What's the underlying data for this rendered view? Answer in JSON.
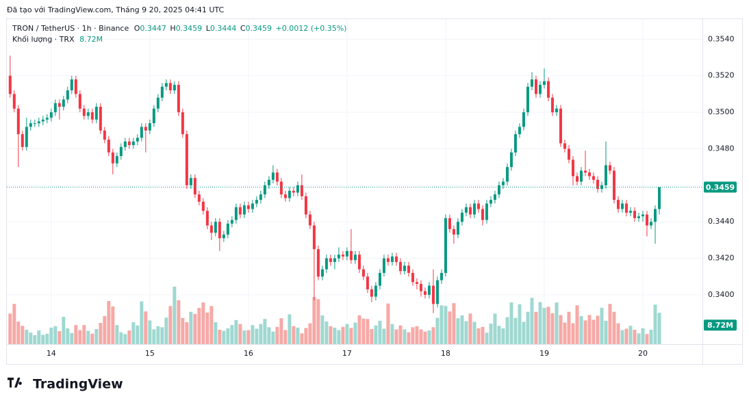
{
  "caption": "Đã tạo với TradingView.com, Tháng 9 20, 2025 04:41 UTC",
  "logo": "TradingView",
  "chart_data": {
    "type": "candlestick",
    "title": "TRON / TetherUS · 1h · Binance",
    "ohlc_labels": [
      "O",
      "H",
      "L",
      "C"
    ],
    "change": "+0.0012 (+0.35%)",
    "volume_title": "Khối lượng · TRX",
    "last_volume_label": "8.72M",
    "up_color": "#089981",
    "down_color": "#f23645",
    "volume_up_color": "#9fd8d1",
    "volume_down_color": "#f6a9a6",
    "grid": true,
    "xlim": [
      -0.8,
      168.5
    ],
    "xticks": [
      {
        "value": 10,
        "label": "14"
      },
      {
        "value": 34,
        "label": "15"
      },
      {
        "value": 58,
        "label": "16"
      },
      {
        "value": 82,
        "label": "17"
      },
      {
        "value": 106,
        "label": "18"
      },
      {
        "value": 130,
        "label": "19"
      },
      {
        "value": 154,
        "label": "20"
      }
    ],
    "ylim": [
      0.3373,
      0.3551
    ],
    "yticks": [
      {
        "value": 0.34,
        "label": "0.3400"
      },
      {
        "value": 0.342,
        "label": "0.3420"
      },
      {
        "value": 0.344,
        "label": "0.3440"
      },
      {
        "value": 0.346,
        "label": "0.3460"
      },
      {
        "value": 0.348,
        "label": "0.3480"
      },
      {
        "value": 0.35,
        "label": "0.3500"
      },
      {
        "value": 0.352,
        "label": "0.3520"
      },
      {
        "value": 0.354,
        "label": "0.3540"
      }
    ],
    "open": [
      0.352,
      0.351,
      0.3502,
      0.3488,
      0.3481,
      0.3492,
      0.3494,
      0.3494,
      0.3495,
      0.3496,
      0.3497,
      0.35,
      0.3505,
      0.3503,
      0.3507,
      0.3512,
      0.3518,
      0.351,
      0.3502,
      0.3498,
      0.35,
      0.3496,
      0.3503,
      0.349,
      0.3485,
      0.3478,
      0.3472,
      0.3476,
      0.3481,
      0.3484,
      0.3482,
      0.3484,
      0.3486,
      0.3492,
      0.349,
      0.3494,
      0.3502,
      0.3508,
      0.3514,
      0.3516,
      0.3512,
      0.3515,
      0.35,
      0.3488,
      0.346,
      0.3464,
      0.3455,
      0.3451,
      0.3446,
      0.3438,
      0.3434,
      0.344,
      0.3431,
      0.3433,
      0.3439,
      0.3441,
      0.3448,
      0.3444,
      0.3449,
      0.3447,
      0.345,
      0.3452,
      0.3455,
      0.346,
      0.3463,
      0.3467,
      0.3462,
      0.3455,
      0.3453,
      0.3457,
      0.3456,
      0.346,
      0.3454,
      0.3444,
      0.3438,
      0.3425,
      0.341,
      0.3414,
      0.342,
      0.3418,
      0.342,
      0.3422,
      0.3421,
      0.3424,
      0.3419,
      0.3422,
      0.3414,
      0.341,
      0.3403,
      0.3399,
      0.3405,
      0.3412,
      0.342,
      0.3418,
      0.3421,
      0.3418,
      0.3413,
      0.3416,
      0.3412,
      0.3407,
      0.3406,
      0.3402,
      0.34,
      0.3405,
      0.3395,
      0.3408,
      0.3412,
      0.3442,
      0.3436,
      0.3433,
      0.344,
      0.3445,
      0.3448,
      0.3444,
      0.345,
      0.3447,
      0.3441,
      0.345,
      0.3452,
      0.3455,
      0.346,
      0.3462,
      0.347,
      0.3478,
      0.3488,
      0.3492,
      0.35,
      0.3514,
      0.3518,
      0.351,
      0.3515,
      0.3517,
      0.3508,
      0.35,
      0.3502,
      0.3483,
      0.348,
      0.3474,
      0.3465,
      0.3462,
      0.3468,
      0.3467,
      0.3465,
      0.3463,
      0.3458,
      0.346,
      0.3471,
      0.3468,
      0.3452,
      0.3447,
      0.345,
      0.3445,
      0.3446,
      0.3442,
      0.3443,
      0.3444,
      0.3438,
      0.344,
      0.3447
    ],
    "high": [
      0.3531,
      0.3512,
      0.3504,
      0.349,
      0.3497,
      0.3496,
      0.3496,
      0.3497,
      0.3498,
      0.3499,
      0.3502,
      0.3507,
      0.3507,
      0.3509,
      0.3514,
      0.352,
      0.352,
      0.3512,
      0.3504,
      0.3502,
      0.3502,
      0.3505,
      0.3505,
      0.3492,
      0.3487,
      0.348,
      0.3478,
      0.3483,
      0.3486,
      0.3486,
      0.3486,
      0.3488,
      0.3494,
      0.3494,
      0.3496,
      0.3504,
      0.351,
      0.3516,
      0.3518,
      0.3518,
      0.3517,
      0.3517,
      0.3502,
      0.349,
      0.3466,
      0.3466,
      0.3457,
      0.3453,
      0.3448,
      0.344,
      0.3442,
      0.3442,
      0.3435,
      0.3441,
      0.3443,
      0.345,
      0.345,
      0.3451,
      0.3451,
      0.3452,
      0.3454,
      0.3457,
      0.3462,
      0.3465,
      0.3471,
      0.3469,
      0.3464,
      0.3457,
      0.3459,
      0.3459,
      0.3462,
      0.3466,
      0.3456,
      0.3446,
      0.344,
      0.3427,
      0.3416,
      0.3422,
      0.3422,
      0.3422,
      0.3426,
      0.3424,
      0.3426,
      0.3436,
      0.3424,
      0.3424,
      0.3416,
      0.3412,
      0.3405,
      0.3407,
      0.3414,
      0.3422,
      0.3422,
      0.3423,
      0.3423,
      0.342,
      0.3418,
      0.3418,
      0.3414,
      0.3409,
      0.3408,
      0.3404,
      0.3407,
      0.3414,
      0.341,
      0.3414,
      0.3444,
      0.3444,
      0.3438,
      0.3442,
      0.3447,
      0.345,
      0.345,
      0.3452,
      0.3452,
      0.3449,
      0.3452,
      0.3454,
      0.3457,
      0.3462,
      0.3464,
      0.3472,
      0.348,
      0.349,
      0.3494,
      0.3502,
      0.3516,
      0.3522,
      0.352,
      0.3517,
      0.3524,
      0.3519,
      0.351,
      0.3504,
      0.3504,
      0.3485,
      0.3482,
      0.3476,
      0.3467,
      0.347,
      0.3479,
      0.3469,
      0.3467,
      0.3465,
      0.3462,
      0.3484,
      0.3473,
      0.347,
      0.3454,
      0.3452,
      0.3452,
      0.3448,
      0.3448,
      0.3445,
      0.3446,
      0.3446,
      0.3442,
      0.3449,
      0.3459
    ],
    "low": [
      0.3508,
      0.35,
      0.347,
      0.3479,
      0.3479,
      0.349,
      0.3492,
      0.3492,
      0.3493,
      0.3494,
      0.3495,
      0.3498,
      0.3496,
      0.3501,
      0.3505,
      0.351,
      0.3508,
      0.35,
      0.3496,
      0.3496,
      0.3494,
      0.3494,
      0.3488,
      0.3483,
      0.3476,
      0.3466,
      0.347,
      0.3474,
      0.3479,
      0.348,
      0.348,
      0.3482,
      0.3484,
      0.3478,
      0.3488,
      0.3492,
      0.35,
      0.3506,
      0.3512,
      0.351,
      0.351,
      0.3498,
      0.3486,
      0.3458,
      0.3458,
      0.3453,
      0.3449,
      0.3444,
      0.3436,
      0.343,
      0.3432,
      0.3424,
      0.3429,
      0.3431,
      0.3437,
      0.3439,
      0.3442,
      0.3442,
      0.3445,
      0.3445,
      0.3448,
      0.345,
      0.3453,
      0.3458,
      0.3461,
      0.346,
      0.3453,
      0.3451,
      0.3451,
      0.3454,
      0.3454,
      0.3452,
      0.3442,
      0.3436,
      0.3397,
      0.3408,
      0.3408,
      0.3412,
      0.3416,
      0.3414,
      0.3418,
      0.3419,
      0.3419,
      0.3417,
      0.3417,
      0.3412,
      0.3408,
      0.3401,
      0.3396,
      0.3397,
      0.3403,
      0.341,
      0.3416,
      0.3416,
      0.3416,
      0.3411,
      0.3411,
      0.341,
      0.3405,
      0.3403,
      0.3399,
      0.3398,
      0.3398,
      0.339,
      0.3393,
      0.3406,
      0.341,
      0.3434,
      0.3428,
      0.3431,
      0.3438,
      0.3443,
      0.3442,
      0.3442,
      0.3445,
      0.3438,
      0.3439,
      0.3448,
      0.345,
      0.3453,
      0.3458,
      0.346,
      0.3468,
      0.3476,
      0.3486,
      0.349,
      0.3498,
      0.3512,
      0.3508,
      0.3508,
      0.3513,
      0.3506,
      0.3498,
      0.3498,
      0.3481,
      0.3478,
      0.3472,
      0.346,
      0.346,
      0.346,
      0.3465,
      0.3463,
      0.3461,
      0.3456,
      0.3456,
      0.3458,
      0.3466,
      0.345,
      0.3445,
      0.3445,
      0.3443,
      0.3443,
      0.344,
      0.344,
      0.344,
      0.3432,
      0.3436,
      0.3428,
      0.3444
    ],
    "close": [
      0.351,
      0.3502,
      0.3488,
      0.3481,
      0.3492,
      0.3494,
      0.3494,
      0.3495,
      0.3496,
      0.3497,
      0.35,
      0.3505,
      0.3503,
      0.3507,
      0.3512,
      0.3518,
      0.351,
      0.3502,
      0.3498,
      0.35,
      0.3496,
      0.3503,
      0.349,
      0.3485,
      0.3478,
      0.3472,
      0.3476,
      0.3481,
      0.3484,
      0.3482,
      0.3484,
      0.3486,
      0.3492,
      0.349,
      0.3494,
      0.3502,
      0.3508,
      0.3514,
      0.3516,
      0.3512,
      0.3515,
      0.35,
      0.3488,
      0.346,
      0.3464,
      0.3455,
      0.3451,
      0.3446,
      0.3438,
      0.3434,
      0.344,
      0.3431,
      0.3433,
      0.3439,
      0.3441,
      0.3448,
      0.3444,
      0.3449,
      0.3447,
      0.345,
      0.3452,
      0.3455,
      0.346,
      0.3463,
      0.3467,
      0.3462,
      0.3455,
      0.3453,
      0.3457,
      0.3456,
      0.346,
      0.3454,
      0.3444,
      0.3438,
      0.3425,
      0.341,
      0.3414,
      0.342,
      0.3418,
      0.342,
      0.3422,
      0.3421,
      0.3424,
      0.3419,
      0.3422,
      0.3414,
      0.341,
      0.3403,
      0.3399,
      0.3405,
      0.3412,
      0.342,
      0.3418,
      0.3421,
      0.3418,
      0.3413,
      0.3416,
      0.3412,
      0.3407,
      0.3406,
      0.3402,
      0.34,
      0.3405,
      0.3395,
      0.3408,
      0.3412,
      0.3442,
      0.3436,
      0.3433,
      0.344,
      0.3445,
      0.3448,
      0.3444,
      0.345,
      0.3447,
      0.3441,
      0.345,
      0.3452,
      0.3455,
      0.346,
      0.3462,
      0.347,
      0.3478,
      0.3488,
      0.3492,
      0.35,
      0.3514,
      0.3518,
      0.351,
      0.3515,
      0.3517,
      0.3508,
      0.35,
      0.3502,
      0.3483,
      0.348,
      0.3474,
      0.3465,
      0.3462,
      0.3468,
      0.3467,
      0.3465,
      0.3463,
      0.3458,
      0.346,
      0.3471,
      0.3468,
      0.3452,
      0.3447,
      0.345,
      0.3445,
      0.3446,
      0.3442,
      0.3443,
      0.3444,
      0.3438,
      0.344,
      0.3447,
      0.3459
    ],
    "volume": [
      8500000,
      11200000,
      6300000,
      5100000,
      4000000,
      3200000,
      2500000,
      3800000,
      2600000,
      2900000,
      4600000,
      5000000,
      3600000,
      7600000,
      4400000,
      3100000,
      5300000,
      3900000,
      5300000,
      3700000,
      2900000,
      4200000,
      5900000,
      7800000,
      12000000,
      10500000,
      5300000,
      3300000,
      2800000,
      3800000,
      6100000,
      5200000,
      11900000,
      9100000,
      6600000,
      4100000,
      5000000,
      4700000,
      7400000,
      10600000,
      16000000,
      12200000,
      7300000,
      6100000,
      9000000,
      8400000,
      10100000,
      11600000,
      8800000,
      10600000,
      6100000,
      4000000,
      3700000,
      4400000,
      5300000,
      6700000,
      5600000,
      3800000,
      3900000,
      5300000,
      4300000,
      5600000,
      7000000,
      4700000,
      3500000,
      4800000,
      7200000,
      3900000,
      8300000,
      5000000,
      4600000,
      3000000,
      4500000,
      5800000,
      13100000,
      12500000,
      8000000,
      6300000,
      5000000,
      4600000,
      3900000,
      4800000,
      5600000,
      4500000,
      6000000,
      8000000,
      7100000,
      7000000,
      4200000,
      5200000,
      6500000,
      4300000,
      11300000,
      5600000,
      4100000,
      5200000,
      4100000,
      3300000,
      4700000,
      5000000,
      4100000,
      3500000,
      3800000,
      4700000,
      7300000,
      10800000,
      10600000,
      9100000,
      11400000,
      7200000,
      8000000,
      6400000,
      8500000,
      6200000,
      4400000,
      4800000,
      3200000,
      5700000,
      8500000,
      5100000,
      4400000,
      7500000,
      11600000,
      7300000,
      11100000,
      6200000,
      9000000,
      12900000,
      9000000,
      11700000,
      10100000,
      10400000,
      8600000,
      11600000,
      8100000,
      6000000,
      9000000,
      5800000,
      10800000,
      7800000,
      6600000,
      8100000,
      6800000,
      7900000,
      10100000,
      6500000,
      11200000,
      9000000,
      5800000,
      3900000,
      4300000,
      5100000,
      4000000,
      3000000,
      4400000,
      2800000,
      4000000,
      11000000,
      8720000
    ]
  }
}
